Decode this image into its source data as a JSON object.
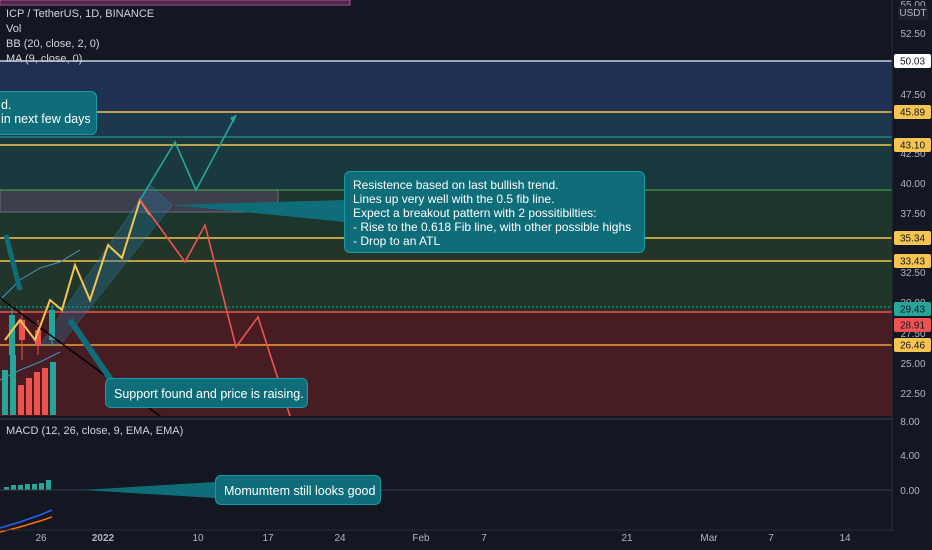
{
  "header": {
    "symbol_line": "ICP / TetherUS, 1D, BINANCE",
    "indicators": [
      "Vol",
      "BB (20, close, 2, 0)",
      "MA (9, close, 0)"
    ],
    "macd_label": "MACD (12, 26, close, 9, EMA, EMA)",
    "currency": "USDT"
  },
  "price_axis": {
    "ticks": [
      "55.00",
      "52.50",
      "47.50",
      "42.50",
      "40.00",
      "37.50",
      "32.50",
      "30.00",
      "27.50",
      "25.00",
      "22.50"
    ],
    "badges": [
      {
        "value": "50.03",
        "color": "#ffffff"
      },
      {
        "value": "45.89",
        "color": "#f5c451"
      },
      {
        "value": "43.10",
        "color": "#f5c451"
      },
      {
        "value": "35.34",
        "color": "#f5c451"
      },
      {
        "value": "33.43",
        "color": "#f5c451"
      },
      {
        "value": "29.43",
        "color": "#26a69a"
      },
      {
        "value": "28.91",
        "color": "#ef5350"
      },
      {
        "value": "26.46",
        "color": "#f5c451"
      }
    ]
  },
  "macd_axis": {
    "ticks": [
      "8.00",
      "4.00",
      "0.00"
    ]
  },
  "time_axis": {
    "ticks": [
      "26",
      "2022",
      "10",
      "17",
      "24",
      "Feb",
      "7",
      "21",
      "Mar",
      "7",
      "14"
    ]
  },
  "annotations": {
    "top_left": [
      "d.",
      "in next few days"
    ],
    "resistance": [
      "Resistence based on last bullish trend.",
      "Lines up very well with the 0.5 fib line.",
      "Expect a breakout pattern with 2 possitibilties:",
      "- Rise to the 0.618 Fib line, with other possible highs",
      "- Drop to an ATL"
    ],
    "support": "Support found and price is raising.",
    "momentum": "Momumtem still looks good"
  },
  "colors": {
    "background": "#131722",
    "bullish_path": "#26a69a",
    "bearish_path": "#ef5350",
    "yellow_path": "#f5c451",
    "fib_line": "#f5c451",
    "callout": "#0f6d79"
  }
}
